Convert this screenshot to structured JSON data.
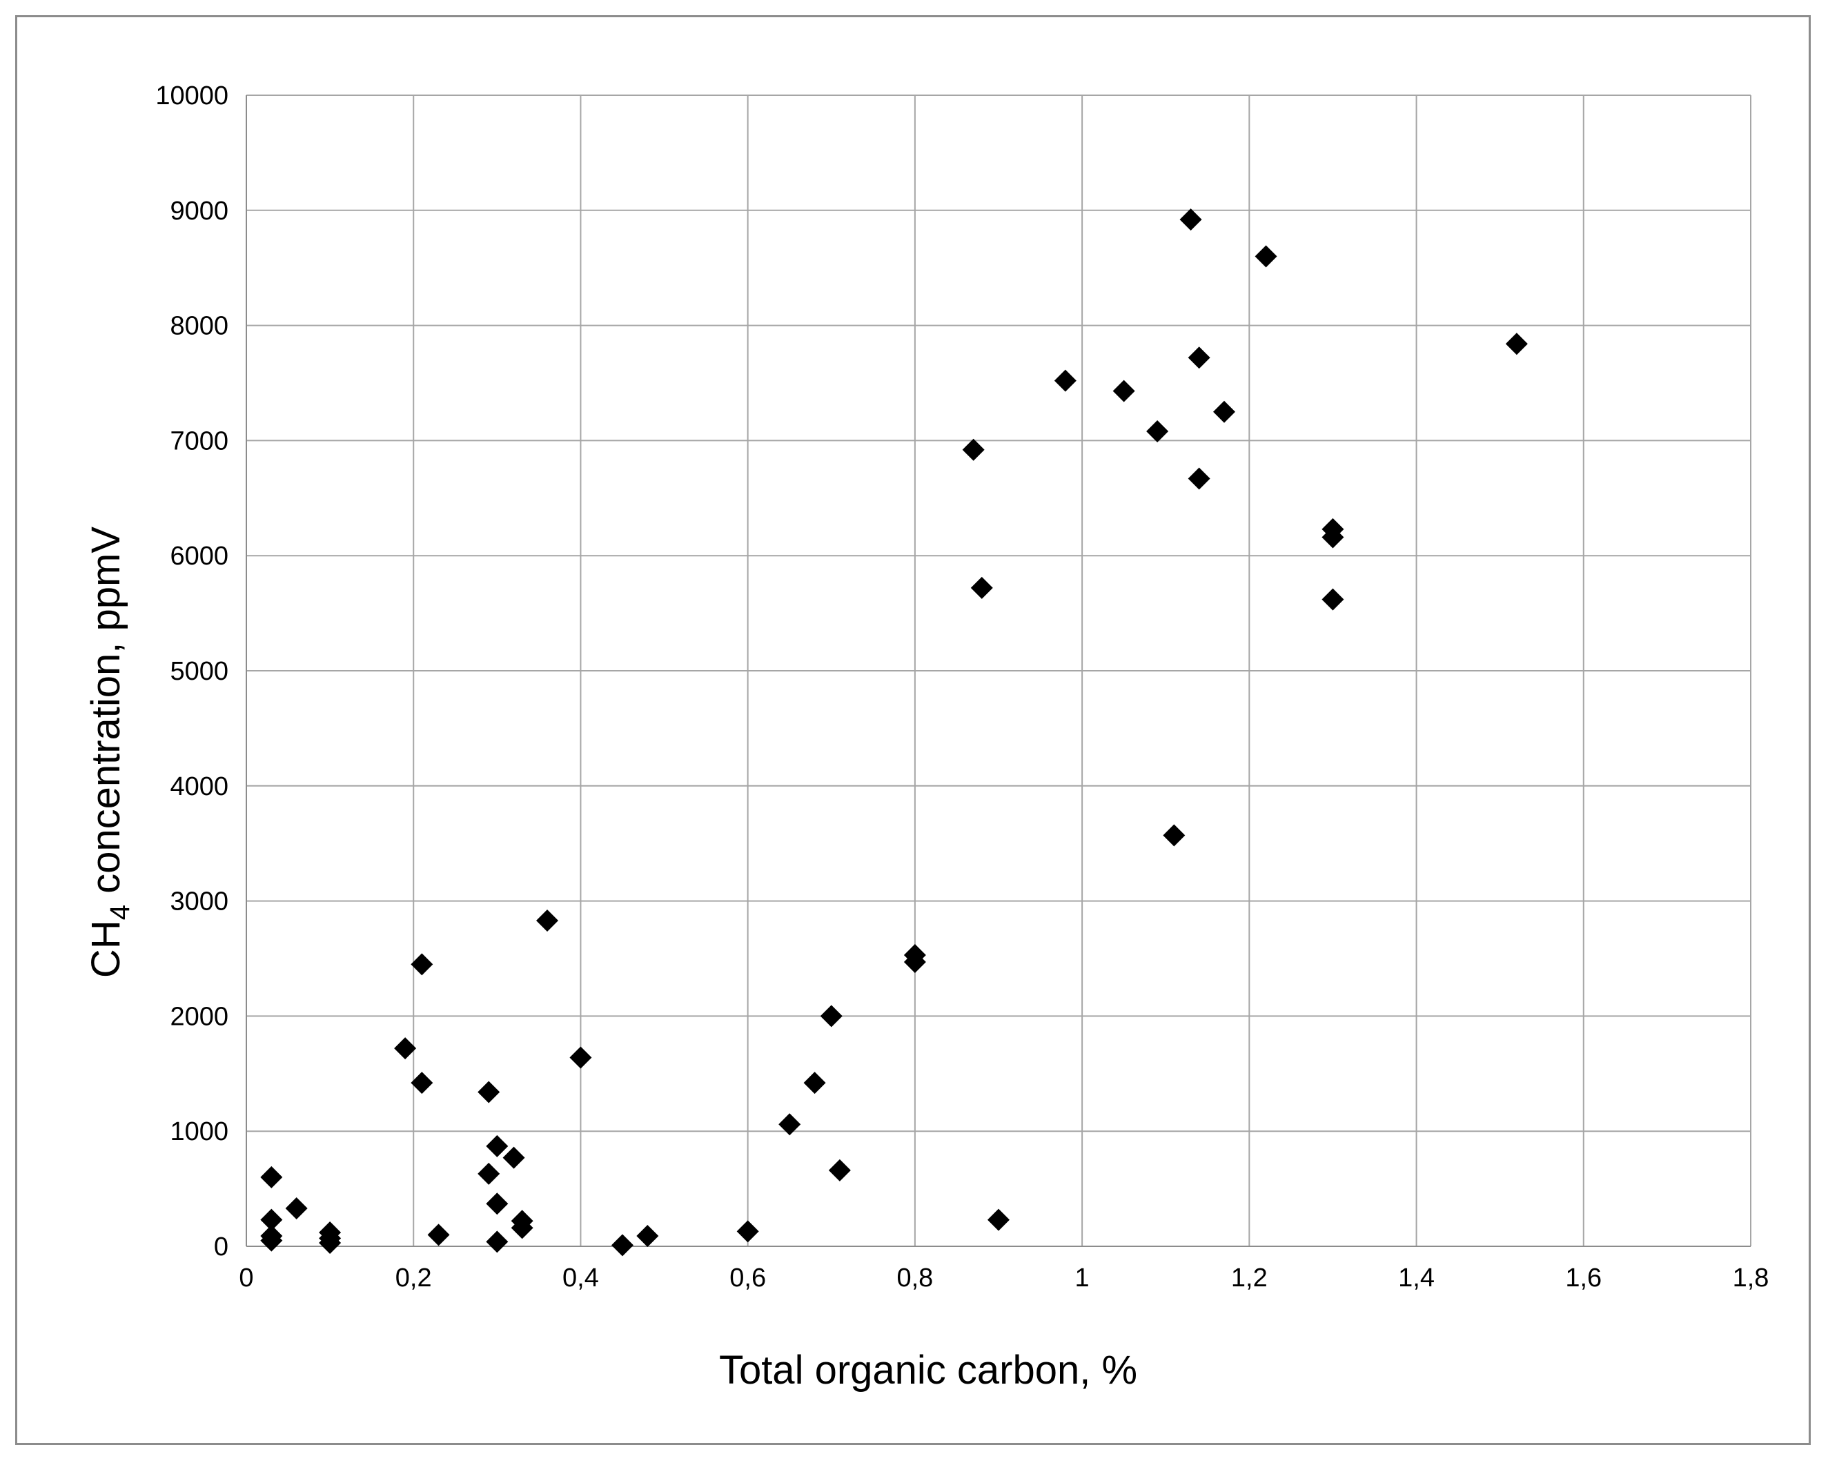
{
  "chart_data": {
    "type": "scatter",
    "title": "",
    "xlabel": "Total organic carbon, %",
    "ylabel_main": "CH",
    "ylabel_sub": "4",
    "ylabel_rest": " concentration, ppmV",
    "xlim": [
      0,
      1.8
    ],
    "ylim": [
      0,
      10000
    ],
    "x_ticks": [
      "0",
      "0,2",
      "0,4",
      "0,6",
      "0,8",
      "1",
      "1,2",
      "1,4",
      "1,6",
      "1,8"
    ],
    "x_tick_values": [
      0,
      0.2,
      0.4,
      0.6,
      0.8,
      1.0,
      1.2,
      1.4,
      1.6,
      1.8
    ],
    "y_ticks": [
      "0",
      "1000",
      "2000",
      "3000",
      "4000",
      "5000",
      "6000",
      "7000",
      "8000",
      "9000",
      "10000"
    ],
    "y_tick_values": [
      0,
      1000,
      2000,
      3000,
      4000,
      5000,
      6000,
      7000,
      8000,
      9000,
      10000
    ],
    "grid": true,
    "marker": "diamond",
    "marker_color": "#000000",
    "grid_color": "#a6a6a6",
    "series": [
      {
        "points": [
          [
            0.03,
            600
          ],
          [
            0.03,
            230
          ],
          [
            0.03,
            90
          ],
          [
            0.03,
            50
          ],
          [
            0.06,
            330
          ],
          [
            0.1,
            120
          ],
          [
            0.1,
            70
          ],
          [
            0.1,
            30
          ],
          [
            0.19,
            1720
          ],
          [
            0.21,
            2450
          ],
          [
            0.21,
            1420
          ],
          [
            0.23,
            100
          ],
          [
            0.29,
            1340
          ],
          [
            0.29,
            630
          ],
          [
            0.3,
            870
          ],
          [
            0.3,
            370
          ],
          [
            0.3,
            40
          ],
          [
            0.32,
            770
          ],
          [
            0.33,
            220
          ],
          [
            0.33,
            160
          ],
          [
            0.36,
            2830
          ],
          [
            0.4,
            1640
          ],
          [
            0.45,
            10
          ],
          [
            0.48,
            90
          ],
          [
            0.6,
            130
          ],
          [
            0.65,
            1060
          ],
          [
            0.68,
            1420
          ],
          [
            0.7,
            2000
          ],
          [
            0.71,
            660
          ],
          [
            0.8,
            2530
          ],
          [
            0.8,
            2470
          ],
          [
            0.87,
            6920
          ],
          [
            0.88,
            5720
          ],
          [
            0.9,
            230
          ],
          [
            0.98,
            7520
          ],
          [
            1.05,
            7430
          ],
          [
            1.09,
            7080
          ],
          [
            1.11,
            3570
          ],
          [
            1.13,
            8920
          ],
          [
            1.14,
            7720
          ],
          [
            1.14,
            6670
          ],
          [
            1.17,
            7250
          ],
          [
            1.22,
            8600
          ],
          [
            1.3,
            6230
          ],
          [
            1.3,
            6160
          ],
          [
            1.3,
            5620
          ],
          [
            1.52,
            7840
          ]
        ]
      }
    ]
  }
}
